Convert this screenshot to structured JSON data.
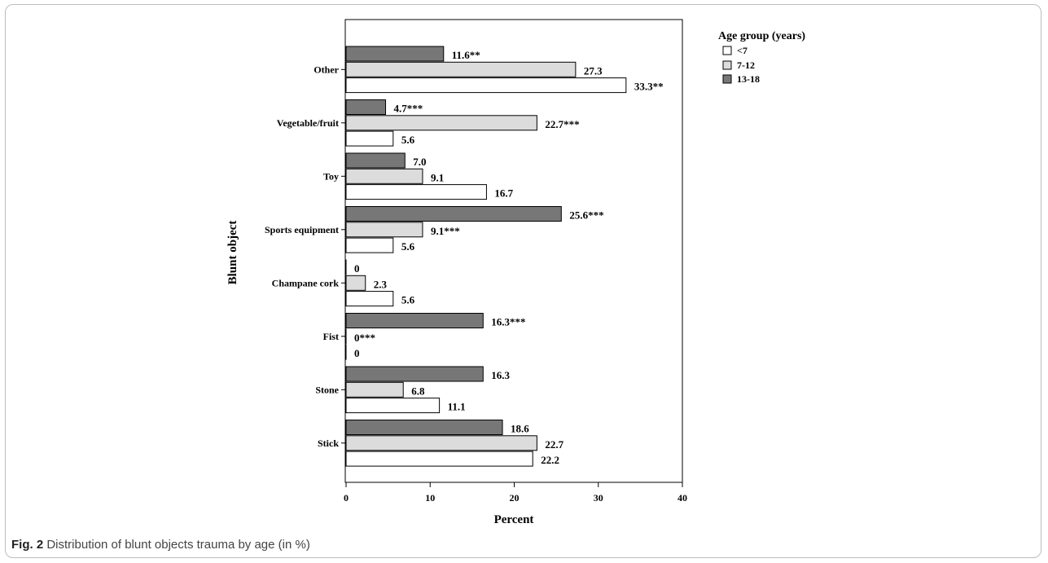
{
  "caption": {
    "label": "Fig. 2",
    "text": "Distribution of blunt objects trauma by age (in %)"
  },
  "colors": {
    "lt7": "#ffffff",
    "7to12": "#dcdcdc",
    "13to18": "#777777",
    "stroke": "#000000"
  },
  "chart_data": {
    "type": "bar",
    "orientation": "horizontal",
    "title": "",
    "xlabel": "Percent",
    "ylabel": "Blunt object",
    "xlim": [
      0,
      40
    ],
    "xticks": [
      "0",
      "10",
      "20",
      "30",
      "40"
    ],
    "grid": false,
    "legend_title": "Age group (years)",
    "legend_position": "top-right outside",
    "categories": [
      "Other",
      "Vegetable/fruit",
      "Toy",
      "Sports equipment",
      "Champane cork",
      "Fist",
      "Stone",
      "Stick"
    ],
    "series": [
      {
        "name": "<7",
        "color": "#ffffff",
        "values": [
          33.3,
          5.6,
          16.7,
          5.6,
          5.6,
          0,
          11.1,
          22.2
        ],
        "labels": [
          "33.3**",
          "5.6",
          "16.7",
          "5.6",
          "5.6",
          "0",
          "11.1",
          "22.2"
        ]
      },
      {
        "name": "7-12",
        "color": "#dcdcdc",
        "values": [
          27.3,
          22.7,
          9.1,
          9.1,
          2.3,
          0,
          6.8,
          22.7
        ],
        "labels": [
          "27.3",
          "22.7***",
          "9.1",
          "9.1***",
          "2.3",
          "0***",
          "6.8",
          "22.7"
        ]
      },
      {
        "name": "13-18",
        "color": "#777777",
        "values": [
          11.6,
          4.7,
          7.0,
          25.6,
          0,
          16.3,
          16.3,
          18.6
        ],
        "labels": [
          "11.6**",
          "4.7***",
          "7.0",
          "25.6***",
          "0",
          "16.3***",
          "16.3",
          "18.6"
        ]
      }
    ]
  }
}
